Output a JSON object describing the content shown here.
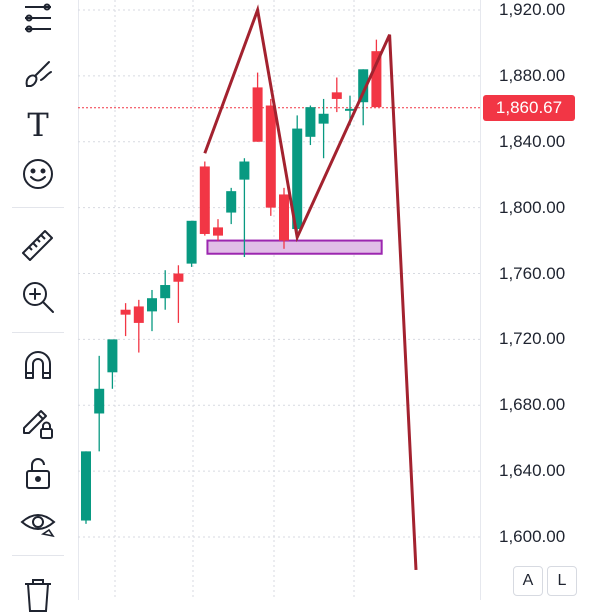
{
  "toolbar": {
    "tools": [
      {
        "icon": "fib-lines-icon",
        "name": "tool-lines"
      },
      {
        "icon": "brush-icon",
        "name": "tool-brush"
      },
      {
        "icon": "text-icon",
        "name": "tool-text",
        "glyph": "T"
      },
      {
        "icon": "smiley-icon",
        "name": "tool-emoji"
      },
      {
        "icon": "ruler-icon",
        "name": "tool-ruler"
      },
      {
        "icon": "zoom-in-icon",
        "name": "tool-zoom"
      },
      {
        "icon": "magnet-icon",
        "name": "tool-magnet"
      },
      {
        "icon": "lock-drawing-icon",
        "name": "tool-lock-drawing"
      },
      {
        "icon": "unlock-icon",
        "name": "tool-lock"
      },
      {
        "icon": "eye-icon",
        "name": "tool-visibility"
      },
      {
        "icon": "trash-icon",
        "name": "tool-delete"
      }
    ]
  },
  "price_axis": {
    "ticks": [
      "1,920.00",
      "1,880.00",
      "1,840.00",
      "1,800.00",
      "1,760.00",
      "1,720.00",
      "1,680.00",
      "1,640.00",
      "1,600.00"
    ],
    "last_price": "1,860.67",
    "buttons": {
      "auto": "A",
      "log": "L"
    }
  },
  "colors": {
    "up": "#089981",
    "down": "#f23645",
    "drawing": "#a3222f",
    "rectangle_stroke": "#9c27b0",
    "rectangle_fill": "#e1bee7",
    "grid": "#d7dae1",
    "price_line": "#f23645"
  },
  "chart_data": {
    "type": "candlestick",
    "y_axis": {
      "min": 1600,
      "max": 1920,
      "step": 40
    },
    "last_price": 1860.67,
    "candles": [
      {
        "open": 1610,
        "high": 1652,
        "low": 1608,
        "close": 1652
      },
      {
        "open": 1675,
        "high": 1710,
        "low": 1652,
        "close": 1690
      },
      {
        "open": 1700,
        "high": 1718,
        "low": 1690,
        "close": 1720
      },
      {
        "open": 1738,
        "high": 1742,
        "low": 1722,
        "close": 1735
      },
      {
        "open": 1740,
        "high": 1744,
        "low": 1712,
        "close": 1730
      },
      {
        "open": 1737,
        "high": 1750,
        "low": 1725,
        "close": 1745
      },
      {
        "open": 1745,
        "high": 1762,
        "low": 1738,
        "close": 1753
      },
      {
        "open": 1760,
        "high": 1765,
        "low": 1730,
        "close": 1755
      },
      {
        "open": 1766,
        "high": 1792,
        "low": 1764,
        "close": 1792
      },
      {
        "open": 1825,
        "high": 1828,
        "low": 1783,
        "close": 1784
      },
      {
        "open": 1788,
        "high": 1793,
        "low": 1780,
        "close": 1783
      },
      {
        "open": 1797,
        "high": 1812,
        "low": 1790,
        "close": 1810
      },
      {
        "open": 1817,
        "high": 1830,
        "low": 1770,
        "close": 1828
      },
      {
        "open": 1873,
        "high": 1882,
        "low": 1840,
        "close": 1840
      },
      {
        "open": 1862,
        "high": 1866,
        "low": 1795,
        "close": 1800
      },
      {
        "open": 1808,
        "high": 1812,
        "low": 1775,
        "close": 1780
      },
      {
        "open": 1787,
        "high": 1856,
        "low": 1780,
        "close": 1848
      },
      {
        "open": 1843,
        "high": 1862,
        "low": 1838,
        "close": 1861
      },
      {
        "open": 1851,
        "high": 1866,
        "low": 1830,
        "close": 1857
      },
      {
        "open": 1870,
        "high": 1879,
        "low": 1858,
        "close": 1866
      },
      {
        "open": 1860,
        "high": 1868,
        "low": 1850,
        "close": 1860
      },
      {
        "open": 1864,
        "high": 1884,
        "low": 1850,
        "close": 1884
      },
      {
        "open": 1895,
        "high": 1902,
        "low": 1863,
        "close": 1861
      }
    ],
    "drawings": {
      "polyline": [
        {
          "candle": 9,
          "price": 1833
        },
        {
          "candle": 13,
          "price": 1920
        },
        {
          "candle": 16,
          "price": 1782
        },
        {
          "candle": 23,
          "price": 1905
        },
        {
          "candle": 25,
          "price": 1580
        }
      ],
      "rectangle": {
        "from_candle": 9.2,
        "to_candle": 22.4,
        "top": 1780,
        "bottom": 1772
      }
    }
  }
}
